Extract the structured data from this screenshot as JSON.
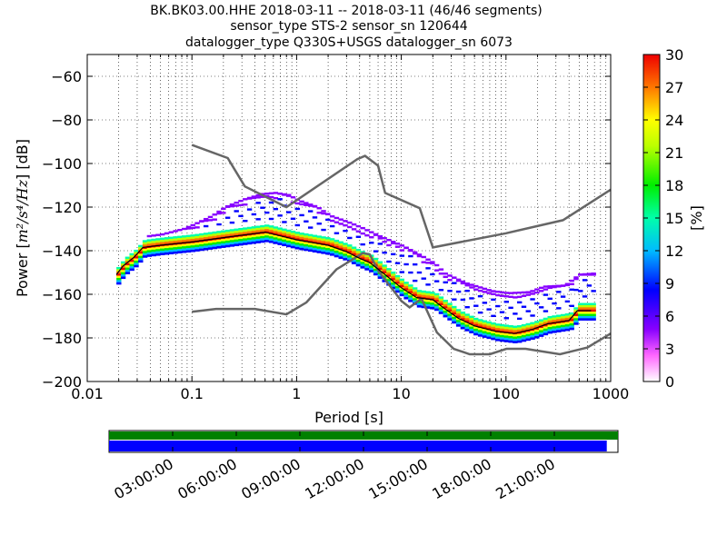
{
  "chart_data": {
    "type": "heatmap",
    "title_lines": [
      "BK.BK03.00.HHE   2018-03-11 -- 2018-03-11  (46/46 segments)",
      "sensor_type STS-2 sensor_sn 120644",
      "datalogger_type Q330S+USGS datalogger_sn 6073"
    ],
    "xlabel": "Period [s]",
    "ylabel_prefix": "Power [",
    "ylabel_math": "m²/s⁴/Hz",
    "ylabel_suffix": "] [dB]",
    "x_scale": "log",
    "xlim": [
      0.01,
      1000
    ],
    "ylim": [
      -200,
      -50
    ],
    "x_ticks": [
      {
        "value": 0.01,
        "label": "0.01"
      },
      {
        "value": 0.1,
        "label": "0.1"
      },
      {
        "value": 1,
        "label": "1"
      },
      {
        "value": 10,
        "label": "10"
      },
      {
        "value": 100,
        "label": "100"
      },
      {
        "value": 1000,
        "label": "1000"
      }
    ],
    "y_ticks": [
      {
        "value": -60,
        "label": "−60"
      },
      {
        "value": -80,
        "label": "−80"
      },
      {
        "value": -100,
        "label": "−100"
      },
      {
        "value": -120,
        "label": "−120"
      },
      {
        "value": -140,
        "label": "−140"
      },
      {
        "value": -160,
        "label": "−160"
      },
      {
        "value": -180,
        "label": "−180"
      },
      {
        "value": -200,
        "label": "−200"
      }
    ],
    "grid": true,
    "colorbar": {
      "label": "[%]",
      "range": [
        0,
        30
      ],
      "ticks": [
        {
          "value": 0,
          "label": "0"
        },
        {
          "value": 3,
          "label": "3"
        },
        {
          "value": 6,
          "label": "6"
        },
        {
          "value": 9,
          "label": "9"
        },
        {
          "value": 12,
          "label": "12"
        },
        {
          "value": 15,
          "label": "15"
        },
        {
          "value": 18,
          "label": "18"
        },
        {
          "value": 21,
          "label": "21"
        },
        {
          "value": 24,
          "label": "24"
        },
        {
          "value": 27,
          "label": "27"
        },
        {
          "value": 30,
          "label": "30"
        }
      ]
    },
    "noise_models": {
      "high": [
        [
          0.1,
          -91.5
        ],
        [
          0.22,
          -97.5
        ],
        [
          0.32,
          -110.5
        ],
        [
          0.8,
          -120
        ],
        [
          3.8,
          -98
        ],
        [
          4.5,
          -96.5
        ],
        [
          6,
          -101
        ],
        [
          7,
          -113.5
        ],
        [
          15,
          -120.5
        ],
        [
          20,
          -138.5
        ],
        [
          100,
          -132
        ],
        [
          350,
          -126
        ],
        [
          1000,
          -112
        ]
      ],
      "low": [
        [
          0.1,
          -168
        ],
        [
          0.17,
          -166.7
        ],
        [
          0.4,
          -166.7
        ],
        [
          0.8,
          -169.2
        ],
        [
          1.24,
          -163.7
        ],
        [
          2.4,
          -148.6
        ],
        [
          4.3,
          -141.1
        ],
        [
          5,
          -141.7
        ],
        [
          6,
          -149
        ],
        [
          10,
          -163
        ],
        [
          12,
          -166
        ],
        [
          15.6,
          -162
        ],
        [
          21.9,
          -177.5
        ],
        [
          31.6,
          -185
        ],
        [
          45,
          -187.5
        ],
        [
          70,
          -187.5
        ],
        [
          101,
          -185
        ],
        [
          154,
          -185
        ],
        [
          328,
          -187.5
        ],
        [
          600,
          -184.4
        ],
        [
          1000,
          -178
        ]
      ]
    },
    "mode_line": [
      [
        0.019,
        -151
      ],
      [
        0.022,
        -147
      ],
      [
        0.028,
        -143
      ],
      [
        0.034,
        -138.5
      ],
      [
        0.05,
        -137.5
      ],
      [
        0.1,
        -136
      ],
      [
        0.2,
        -134
      ],
      [
        0.5,
        -131.5
      ],
      [
        1.0,
        -135
      ],
      [
        2.0,
        -137.5
      ],
      [
        3.0,
        -140.5
      ],
      [
        4.0,
        -143.5
      ],
      [
        5.0,
        -145.5
      ],
      [
        7.0,
        -151
      ],
      [
        10.0,
        -157
      ],
      [
        14.0,
        -161.5
      ],
      [
        20.0,
        -162.5
      ],
      [
        25.0,
        -166
      ],
      [
        35.0,
        -171
      ],
      [
        50.0,
        -174.5
      ],
      [
        80.0,
        -177
      ],
      [
        120.0,
        -178
      ],
      [
        180.0,
        -176
      ],
      [
        250.0,
        -173.5
      ],
      [
        400.0,
        -172
      ],
      [
        480.0,
        -167.5
      ],
      [
        650.0,
        -167.5
      ]
    ],
    "upper_envelope": [
      [
        0.035,
        -133.5
      ],
      [
        0.05,
        -132.5
      ],
      [
        0.08,
        -130
      ],
      [
        0.1,
        -128
      ],
      [
        0.15,
        -124
      ],
      [
        0.2,
        -120
      ],
      [
        0.3,
        -116.5
      ],
      [
        0.45,
        -114
      ],
      [
        0.6,
        -113.5
      ],
      [
        0.8,
        -114.5
      ],
      [
        1.0,
        -117
      ],
      [
        1.5,
        -120
      ],
      [
        2.0,
        -124
      ],
      [
        3.0,
        -127
      ],
      [
        4.0,
        -129.5
      ],
      [
        6.0,
        -133.5
      ],
      [
        8.0,
        -136
      ],
      [
        10.0,
        -138
      ],
      [
        15.0,
        -142.5
      ],
      [
        20.0,
        -146
      ],
      [
        25.0,
        -150.5
      ],
      [
        40.0,
        -155
      ],
      [
        70.0,
        -158.5
      ],
      [
        100.0,
        -159.5
      ],
      [
        160.0,
        -159
      ],
      [
        220.0,
        -156.5
      ],
      [
        350.0,
        -156
      ],
      [
        480.0,
        -151
      ],
      [
        650.0,
        -150.5
      ]
    ],
    "time_axis": {
      "labels": [
        "03:00:00",
        "06:00:00",
        "09:00:00",
        "12:00:00",
        "15:00:00",
        "18:00:00",
        "21:00:00"
      ],
      "coverage_fraction": 0.978,
      "segments_color": "#008000",
      "data_color": "#0000ff"
    }
  }
}
